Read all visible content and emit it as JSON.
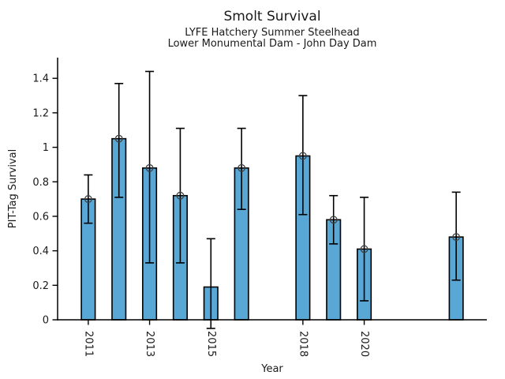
{
  "chart_data": {
    "type": "bar",
    "title": "Smolt Survival",
    "subtitle": [
      "LYFE Hatchery Summer Steelhead",
      "Lower Monumental Dam - John Day Dam"
    ],
    "xlabel": "Year",
    "ylabel": "PIT-Tag Survival",
    "x": [
      2011,
      2012,
      2013,
      2014,
      2015,
      2016,
      2018,
      2019,
      2020,
      2023
    ],
    "values": [
      0.7,
      1.05,
      0.88,
      0.72,
      0.19,
      0.88,
      0.95,
      0.58,
      0.41,
      0.48
    ],
    "error_low": [
      0.56,
      0.71,
      0.33,
      0.33,
      -0.05,
      0.64,
      0.61,
      0.44,
      0.11,
      0.23
    ],
    "error_high": [
      0.84,
      1.37,
      1.44,
      1.11,
      0.47,
      1.11,
      1.3,
      0.72,
      0.71,
      0.74
    ],
    "has_point_marker": [
      true,
      true,
      true,
      true,
      false,
      true,
      true,
      true,
      true,
      true
    ],
    "missing_years": [
      2017,
      2021,
      2022
    ],
    "x_ticks": [
      2011,
      2013,
      2015,
      2018,
      2020
    ],
    "x_tick_labels": [
      "2011",
      "2013",
      "2015",
      "2018",
      "2020"
    ],
    "x_tick_rotation_deg": 90,
    "y_ticks": [
      0,
      0.2,
      0.4,
      0.6,
      0.8,
      1,
      1.2,
      1.4
    ],
    "y_tick_labels": [
      "0",
      "0.2",
      "0.4",
      "0.6",
      "0.8",
      "1",
      "1.2",
      "1.4"
    ],
    "xlim": [
      2010,
      2024
    ],
    "ylim": [
      0,
      1.52
    ],
    "bar_width_years": 0.45,
    "bar_fill_color": "#59A7D5",
    "bar_edge_color": "#000000",
    "errorbar_color": "#000000",
    "marker": "open-circle",
    "marker_color": "#3f3f3f",
    "grid": false,
    "legend": null
  }
}
